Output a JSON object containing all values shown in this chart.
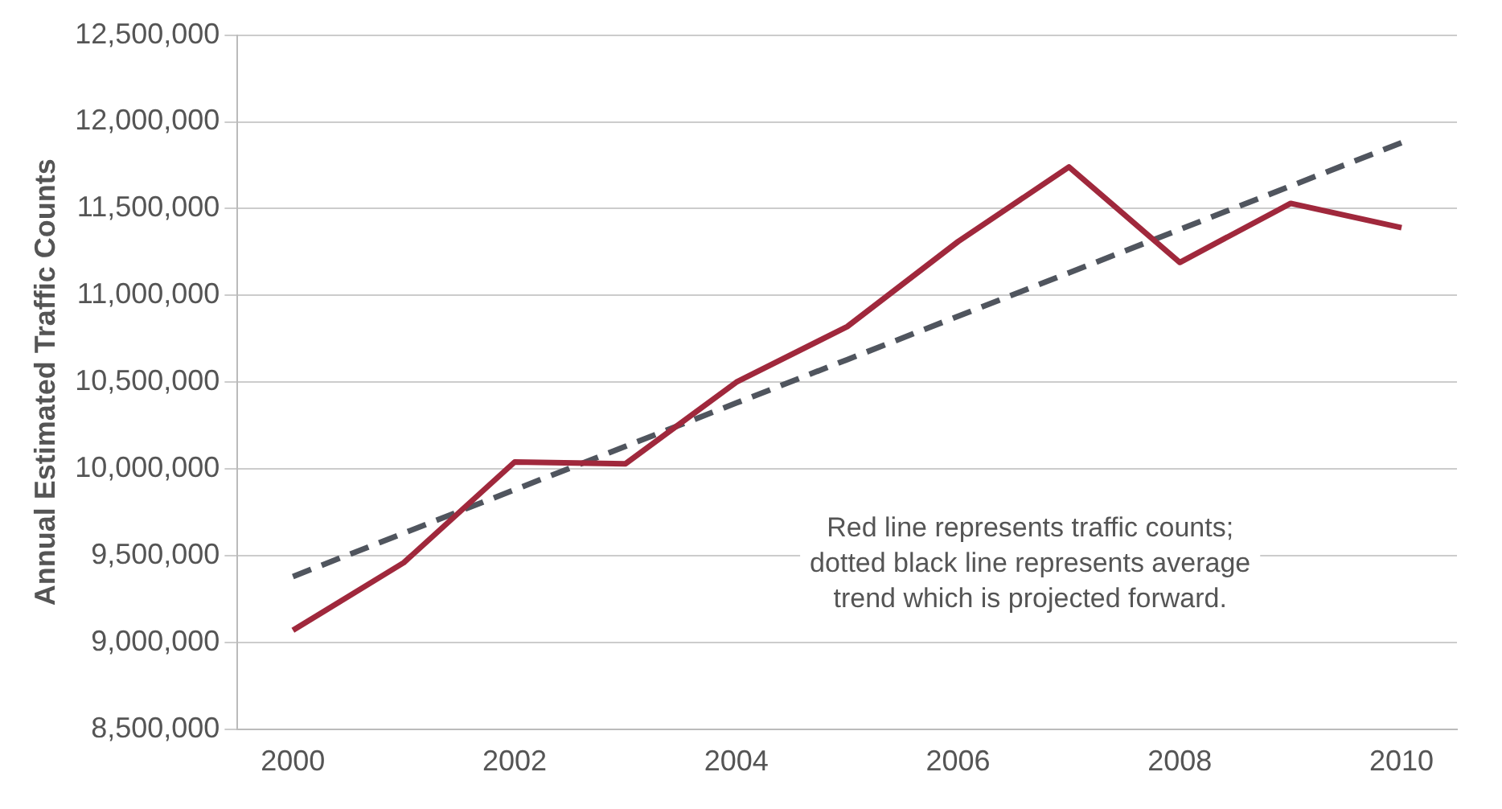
{
  "chart_data": {
    "type": "line",
    "ylabel": "Annual Estimated Traffic Counts",
    "categories": [
      "2000",
      null,
      "2002",
      null,
      "2004",
      null,
      "2006",
      null,
      "2008",
      null,
      "2010"
    ],
    "series": [
      {
        "color": "#a0283c",
        "values": [
          9070000,
          9460000,
          10040000,
          10030000,
          10500000,
          10820000,
          11310000,
          11740000,
          11190000,
          11530000,
          11390000
        ]
      },
      {
        "color": "#50555e",
        "line_style": "dashed",
        "values": [
          9380000,
          9630000,
          9880000,
          10130000,
          10380000,
          10630000,
          10880000,
          11130000,
          11380000,
          11630000,
          11880000
        ]
      }
    ],
    "ylim": [
      8500000,
      12500000
    ],
    "yticks": [
      {
        "value": 8500000,
        "label": "8,500,000"
      },
      {
        "value": 9000000,
        "label": "9,000,000"
      },
      {
        "value": 9500000,
        "label": "9,500,000"
      },
      {
        "value": 10000000,
        "label": "10,000,000"
      },
      {
        "value": 10500000,
        "label": "10,500,000"
      },
      {
        "value": 11000000,
        "label": "11,000,000"
      },
      {
        "value": 11500000,
        "label": "11,500,000"
      },
      {
        "value": 12000000,
        "label": "12,000,000"
      },
      {
        "value": 12500000,
        "label": "12,500,000"
      }
    ],
    "grid": "y",
    "legend": false,
    "marker": "none",
    "annotations": [
      "Red line represents traffic counts;\ndotted black line represents average\ntrend which is projected forward."
    ]
  }
}
